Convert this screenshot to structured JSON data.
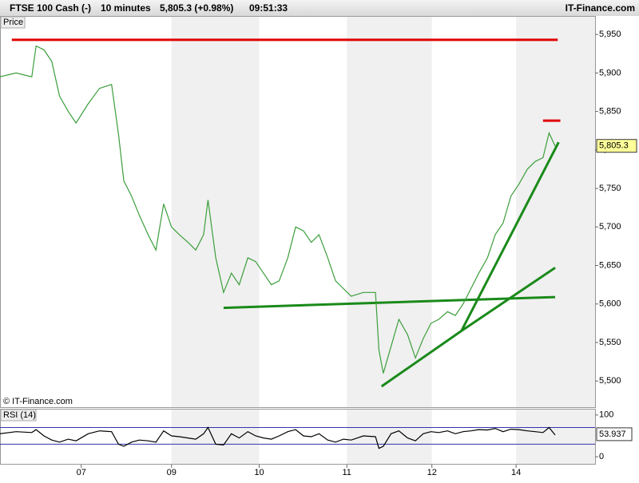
{
  "header": {
    "instrument": "FTSE 100 Cash (-)",
    "interval": "10 minutes",
    "quote": "5,805.3 (+0.98%)",
    "time": "09:51:33",
    "site": "IT-Finance.com"
  },
  "watermark": "© IT-Finance.com",
  "chart_data": [
    {
      "type": "line",
      "title": "Price",
      "xlim": [
        0.064,
        6.92
      ],
      "ylim": [
        5466,
        5974
      ],
      "yticks": [
        {
          "value": 5500,
          "label": "5,500"
        },
        {
          "value": 5550,
          "label": "5,550"
        },
        {
          "value": 5600,
          "label": "5,600"
        },
        {
          "value": 5650,
          "label": "5,650"
        },
        {
          "value": 5700,
          "label": "5,700"
        },
        {
          "value": 5750,
          "label": "5,750"
        },
        {
          "value": 5800,
          "label": "5,800"
        },
        {
          "value": 5850,
          "label": "5,850"
        },
        {
          "value": 5900,
          "label": "5,900"
        },
        {
          "value": 5950,
          "label": "5,950"
        }
      ],
      "x": [
        0.06,
        0.25,
        0.43,
        0.48,
        0.57,
        0.66,
        0.75,
        0.85,
        0.94,
        1.08,
        1.21,
        1.35,
        1.43,
        1.49,
        1.58,
        1.67,
        1.77,
        1.86,
        1.95,
        2.04,
        2.13,
        2.23,
        2.32,
        2.41,
        2.46,
        2.55,
        2.64,
        2.73,
        2.82,
        2.92,
        3.01,
        3.1,
        3.19,
        3.28,
        3.38,
        3.47,
        3.56,
        3.65,
        3.74,
        3.84,
        3.93,
        4.02,
        4.11,
        4.25,
        4.39,
        4.43,
        4.48,
        4.57,
        4.66,
        4.76,
        4.85,
        4.94,
        5.03,
        5.12,
        5.22,
        5.31,
        5.4,
        5.49,
        5.58,
        5.68,
        5.77,
        5.86,
        5.95,
        6.04,
        6.14,
        6.23,
        6.32,
        6.39,
        6.46
      ],
      "series": [
        {
          "color": "#3c9e3c",
          "values": [
            5895,
            5900,
            5895,
            5935,
            5930,
            5915,
            5870,
            5850,
            5835,
            5860,
            5880,
            5885,
            5820,
            5760,
            5740,
            5715,
            5690,
            5670,
            5730,
            5700,
            5690,
            5680,
            5670,
            5690,
            5735,
            5660,
            5615,
            5640,
            5625,
            5660,
            5655,
            5640,
            5625,
            5630,
            5660,
            5700,
            5695,
            5680,
            5690,
            5660,
            5630,
            5620,
            5610,
            5615,
            5615,
            5540,
            5510,
            5545,
            5580,
            5560,
            5530,
            5555,
            5575,
            5580,
            5590,
            5585,
            5600,
            5620,
            5640,
            5660,
            5690,
            5705,
            5740,
            5755,
            5775,
            5785,
            5790,
            5822,
            5805
          ]
        }
      ],
      "last_price": {
        "value": 5805.3,
        "label": "5,805.3"
      },
      "trendlines": [
        {
          "color": "#e00000",
          "x": [
            0.2,
            6.49
          ],
          "y": [
            5943,
            5943
          ]
        },
        {
          "color": "#e00000",
          "x": [
            6.32,
            6.52
          ],
          "y": [
            5838,
            5838
          ]
        },
        {
          "color": "#1a8a1a",
          "x": [
            2.64,
            6.46
          ],
          "y": [
            5595,
            5609
          ]
        },
        {
          "color": "#1a8a1a",
          "x": [
            4.46,
            5.38
          ],
          "y": [
            5493,
            5565
          ]
        },
        {
          "color": "#1a8a1a",
          "x": [
            5.38,
            6.5
          ],
          "y": [
            5565,
            5810
          ]
        },
        {
          "color": "#1a8a1a",
          "x": [
            5.38,
            6.46
          ],
          "y": [
            5565,
            5647
          ]
        }
      ]
    },
    {
      "type": "line",
      "title": "RSI (14)",
      "xlim": [
        0.064,
        6.92
      ],
      "ylim": [
        -19,
        115
      ],
      "yticks": [
        0,
        100
      ],
      "levels": [
        70,
        30
      ],
      "level_color": "#3333aa",
      "xticks": [
        {
          "value": 1,
          "label": "07"
        },
        {
          "value": 2.04,
          "label": "09"
        },
        {
          "value": 3.05,
          "label": "10"
        },
        {
          "value": 4.06,
          "label": "11"
        },
        {
          "value": 5.04,
          "label": "12"
        },
        {
          "value": 6.01,
          "label": "14"
        }
      ],
      "x": [
        0.06,
        0.25,
        0.43,
        0.48,
        0.57,
        0.66,
        0.75,
        0.85,
        0.94,
        1.08,
        1.21,
        1.35,
        1.43,
        1.49,
        1.58,
        1.67,
        1.77,
        1.86,
        1.95,
        2.04,
        2.13,
        2.23,
        2.32,
        2.41,
        2.46,
        2.55,
        2.64,
        2.73,
        2.82,
        2.92,
        3.01,
        3.1,
        3.19,
        3.28,
        3.38,
        3.47,
        3.56,
        3.65,
        3.74,
        3.84,
        3.93,
        4.02,
        4.11,
        4.25,
        4.39,
        4.43,
        4.48,
        4.57,
        4.66,
        4.76,
        4.85,
        4.94,
        5.03,
        5.12,
        5.22,
        5.31,
        5.4,
        5.49,
        5.58,
        5.68,
        5.77,
        5.86,
        5.95,
        6.04,
        6.14,
        6.23,
        6.32,
        6.39,
        6.46
      ],
      "series": [
        {
          "color": "#000000",
          "values": [
            55,
            60,
            58,
            65,
            50,
            40,
            35,
            42,
            38,
            55,
            62,
            60,
            30,
            25,
            35,
            40,
            38,
            35,
            62,
            50,
            48,
            45,
            42,
            55,
            70,
            30,
            28,
            55,
            45,
            60,
            50,
            45,
            42,
            50,
            60,
            65,
            50,
            48,
            55,
            40,
            35,
            42,
            40,
            50,
            48,
            20,
            25,
            55,
            62,
            45,
            38,
            55,
            60,
            58,
            62,
            55,
            60,
            62,
            65,
            64,
            68,
            60,
            66,
            65,
            62,
            60,
            58,
            70,
            52
          ]
        }
      ],
      "last_value": 53.937
    }
  ]
}
